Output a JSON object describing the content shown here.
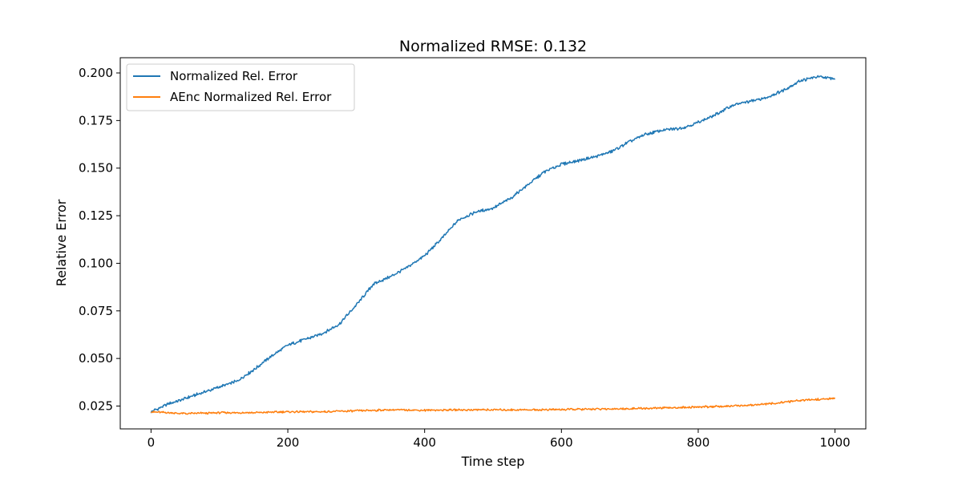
{
  "chart_data": {
    "type": "line",
    "title": "Normalized RMSE: 0.132",
    "xlabel": "Time step",
    "ylabel": "Relative Error",
    "xlim": [
      -45,
      1045
    ],
    "ylim": [
      0.013,
      0.208
    ],
    "xticks": [
      0,
      200,
      400,
      600,
      800,
      1000
    ],
    "xtick_labels": [
      "0",
      "200",
      "400",
      "600",
      "800",
      "1000"
    ],
    "yticks": [
      0.025,
      0.05,
      0.075,
      0.1,
      0.125,
      0.15,
      0.175,
      0.2
    ],
    "ytick_labels": [
      "0.025",
      "0.050",
      "0.075",
      "0.100",
      "0.125",
      "0.150",
      "0.175",
      "0.200"
    ],
    "grid": false,
    "legend_position": "top-left",
    "series": [
      {
        "name": "Normalized Rel. Error",
        "color": "#1f77b4",
        "x": [
          0,
          25,
          50,
          75,
          100,
          125,
          150,
          175,
          200,
          225,
          250,
          275,
          300,
          325,
          350,
          375,
          400,
          425,
          450,
          475,
          500,
          525,
          550,
          575,
          600,
          625,
          650,
          675,
          700,
          725,
          750,
          775,
          800,
          825,
          850,
          875,
          900,
          925,
          950,
          975,
          1000
        ],
        "y": [
          0.022,
          0.026,
          0.029,
          0.032,
          0.035,
          0.038,
          0.044,
          0.051,
          0.057,
          0.06,
          0.063,
          0.068,
          0.078,
          0.089,
          0.093,
          0.098,
          0.104,
          0.113,
          0.123,
          0.127,
          0.129,
          0.134,
          0.141,
          0.148,
          0.152,
          0.154,
          0.156,
          0.159,
          0.164,
          0.168,
          0.17,
          0.171,
          0.174,
          0.178,
          0.183,
          0.185,
          0.187,
          0.191,
          0.196,
          0.198,
          0.197
        ]
      },
      {
        "name": "AEnc Normalized Rel. Error",
        "color": "#ff7f0e",
        "x": [
          0,
          50,
          100,
          150,
          200,
          250,
          300,
          350,
          400,
          450,
          500,
          550,
          600,
          650,
          700,
          750,
          800,
          850,
          900,
          950,
          1000
        ],
        "y": [
          0.022,
          0.021,
          0.0215,
          0.0215,
          0.022,
          0.022,
          0.0225,
          0.023,
          0.0228,
          0.023,
          0.023,
          0.023,
          0.0232,
          0.0234,
          0.0236,
          0.024,
          0.0245,
          0.025,
          0.026,
          0.028,
          0.029
        ]
      }
    ]
  }
}
